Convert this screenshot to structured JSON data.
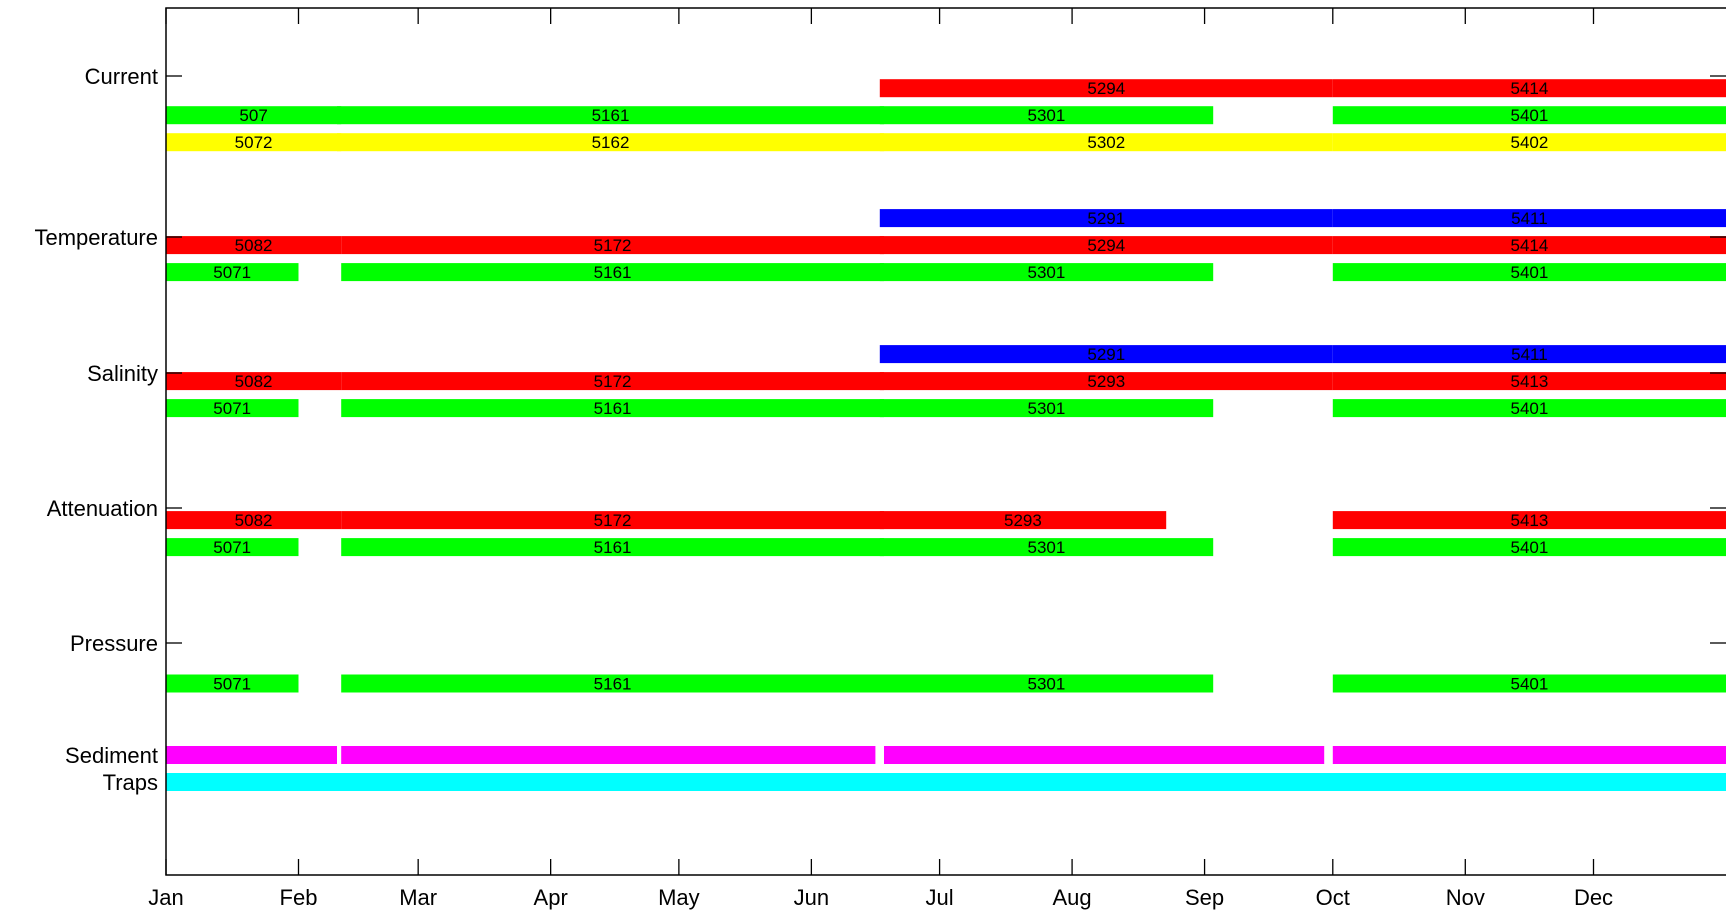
{
  "chart_data": {
    "type": "timeline",
    "title": "",
    "xlabel": "",
    "ylabel": "",
    "x_ticks": [
      "Jan",
      "Feb",
      "Mar",
      "Apr",
      "May",
      "Jun",
      "Jul",
      "Aug",
      "Sep",
      "Oct",
      "Nov",
      "Dec"
    ],
    "xlim": [
      "Jan 1",
      "Dec 31"
    ],
    "grid": false,
    "colors": {
      "red": "#ff0000",
      "green": "#00ff00",
      "yellow": "#ffff00",
      "blue": "#0000ff",
      "magenta": "#ff00ff",
      "cyan": "#00ffff"
    },
    "groups": [
      {
        "name": "Current",
        "rows": [
          {
            "color": "red",
            "segments": [
              {
                "label": "5294",
                "start": "Jun 17",
                "end": "Sep 30"
              },
              {
                "label": "5414",
                "start": "Oct 1",
                "end": "Dec 31"
              }
            ]
          },
          {
            "color": "green",
            "segments": [
              {
                "label": "507",
                "start": "Jan 1",
                "end": "Feb 10"
              },
              {
                "label": "5161",
                "start": "Feb 10",
                "end": "Jun 17"
              },
              {
                "label": "5301",
                "start": "Jun 17",
                "end": "Sep 2"
              },
              {
                "label": "5401",
                "start": "Oct 1",
                "end": "Dec 31"
              }
            ]
          },
          {
            "color": "yellow",
            "segments": [
              {
                "label": "5072",
                "start": "Jan 1",
                "end": "Feb 10"
              },
              {
                "label": "5162",
                "start": "Feb 10",
                "end": "Jun 17"
              },
              {
                "label": "5302",
                "start": "Jun 17",
                "end": "Sep 30"
              },
              {
                "label": "5402",
                "start": "Oct 1",
                "end": "Dec 31"
              }
            ]
          }
        ]
      },
      {
        "name": "Temperature",
        "rows": [
          {
            "color": "blue",
            "segments": [
              {
                "label": "5291",
                "start": "Jun 17",
                "end": "Sep 30"
              },
              {
                "label": "5411",
                "start": "Oct 1",
                "end": "Dec 31"
              }
            ]
          },
          {
            "color": "red",
            "segments": [
              {
                "label": "5082",
                "start": "Jan 1",
                "end": "Feb 10"
              },
              {
                "label": "5172",
                "start": "Feb 11",
                "end": "Jun 17"
              },
              {
                "label": "5294",
                "start": "Jun 17",
                "end": "Sep 30"
              },
              {
                "label": "5414",
                "start": "Oct 1",
                "end": "Dec 31"
              }
            ]
          },
          {
            "color": "green",
            "segments": [
              {
                "label": "5071",
                "start": "Jan 1",
                "end": "Jan 31"
              },
              {
                "label": "5161",
                "start": "Feb 11",
                "end": "Jun 17"
              },
              {
                "label": "5301",
                "start": "Jun 17",
                "end": "Sep 2"
              },
              {
                "label": "5401",
                "start": "Oct 1",
                "end": "Dec 31"
              }
            ]
          }
        ]
      },
      {
        "name": "Salinity",
        "rows": [
          {
            "color": "blue",
            "segments": [
              {
                "label": "5291",
                "start": "Jun 17",
                "end": "Sep 30"
              },
              {
                "label": "5411",
                "start": "Oct 1",
                "end": "Dec 31"
              }
            ]
          },
          {
            "color": "red",
            "segments": [
              {
                "label": "5082",
                "start": "Jan 1",
                "end": "Feb 10"
              },
              {
                "label": "5172",
                "start": "Feb 11",
                "end": "Jun 17"
              },
              {
                "label": "5293",
                "start": "Jun 17",
                "end": "Sep 30"
              },
              {
                "label": "5413",
                "start": "Oct 1",
                "end": "Dec 31"
              }
            ]
          },
          {
            "color": "green",
            "segments": [
              {
                "label": "5071",
                "start": "Jan 1",
                "end": "Jan 31"
              },
              {
                "label": "5161",
                "start": "Feb 11",
                "end": "Jun 17"
              },
              {
                "label": "5301",
                "start": "Jun 17",
                "end": "Sep 2"
              },
              {
                "label": "5401",
                "start": "Oct 1",
                "end": "Dec 31"
              }
            ]
          }
        ]
      },
      {
        "name": "Attenuation",
        "rows": [
          {
            "color": "red",
            "segments": [
              {
                "label": "5082",
                "start": "Jan 1",
                "end": "Feb 10"
              },
              {
                "label": "5172",
                "start": "Feb 11",
                "end": "Jun 17"
              },
              {
                "label": "5293",
                "start": "Jun 17",
                "end": "Aug 22"
              },
              {
                "label": "5413",
                "start": "Oct 1",
                "end": "Dec 31"
              }
            ]
          },
          {
            "color": "green",
            "segments": [
              {
                "label": "5071",
                "start": "Jan 1",
                "end": "Jan 31"
              },
              {
                "label": "5161",
                "start": "Feb 11",
                "end": "Jun 17"
              },
              {
                "label": "5301",
                "start": "Jun 17",
                "end": "Sep 2"
              },
              {
                "label": "5401",
                "start": "Oct 1",
                "end": "Dec 31"
              }
            ]
          }
        ]
      },
      {
        "name": "Pressure",
        "rows": [
          {
            "color": "green",
            "segments": [
              {
                "label": "5071",
                "start": "Jan 1",
                "end": "Jan 31"
              },
              {
                "label": "5161",
                "start": "Feb 11",
                "end": "Jun 17"
              },
              {
                "label": "5301",
                "start": "Jun 17",
                "end": "Sep 2"
              },
              {
                "label": "5401",
                "start": "Oct 1",
                "end": "Dec 31"
              }
            ]
          }
        ]
      },
      {
        "name": "Sediment Traps",
        "label_lines": [
          "Sediment",
          "Traps"
        ],
        "rows": [
          {
            "color": "magenta",
            "segments": [
              {
                "label": "",
                "start": "Jan 1",
                "end": "Feb 9"
              },
              {
                "label": "",
                "start": "Feb 11",
                "end": "Jun 15"
              },
              {
                "label": "",
                "start": "Jun 18",
                "end": "Sep 28"
              },
              {
                "label": "",
                "start": "Oct 1",
                "end": "Dec 31"
              }
            ]
          },
          {
            "color": "cyan",
            "segments": [
              {
                "label": "",
                "start": "Jan 1",
                "end": "Dec 31"
              }
            ]
          }
        ]
      }
    ]
  }
}
